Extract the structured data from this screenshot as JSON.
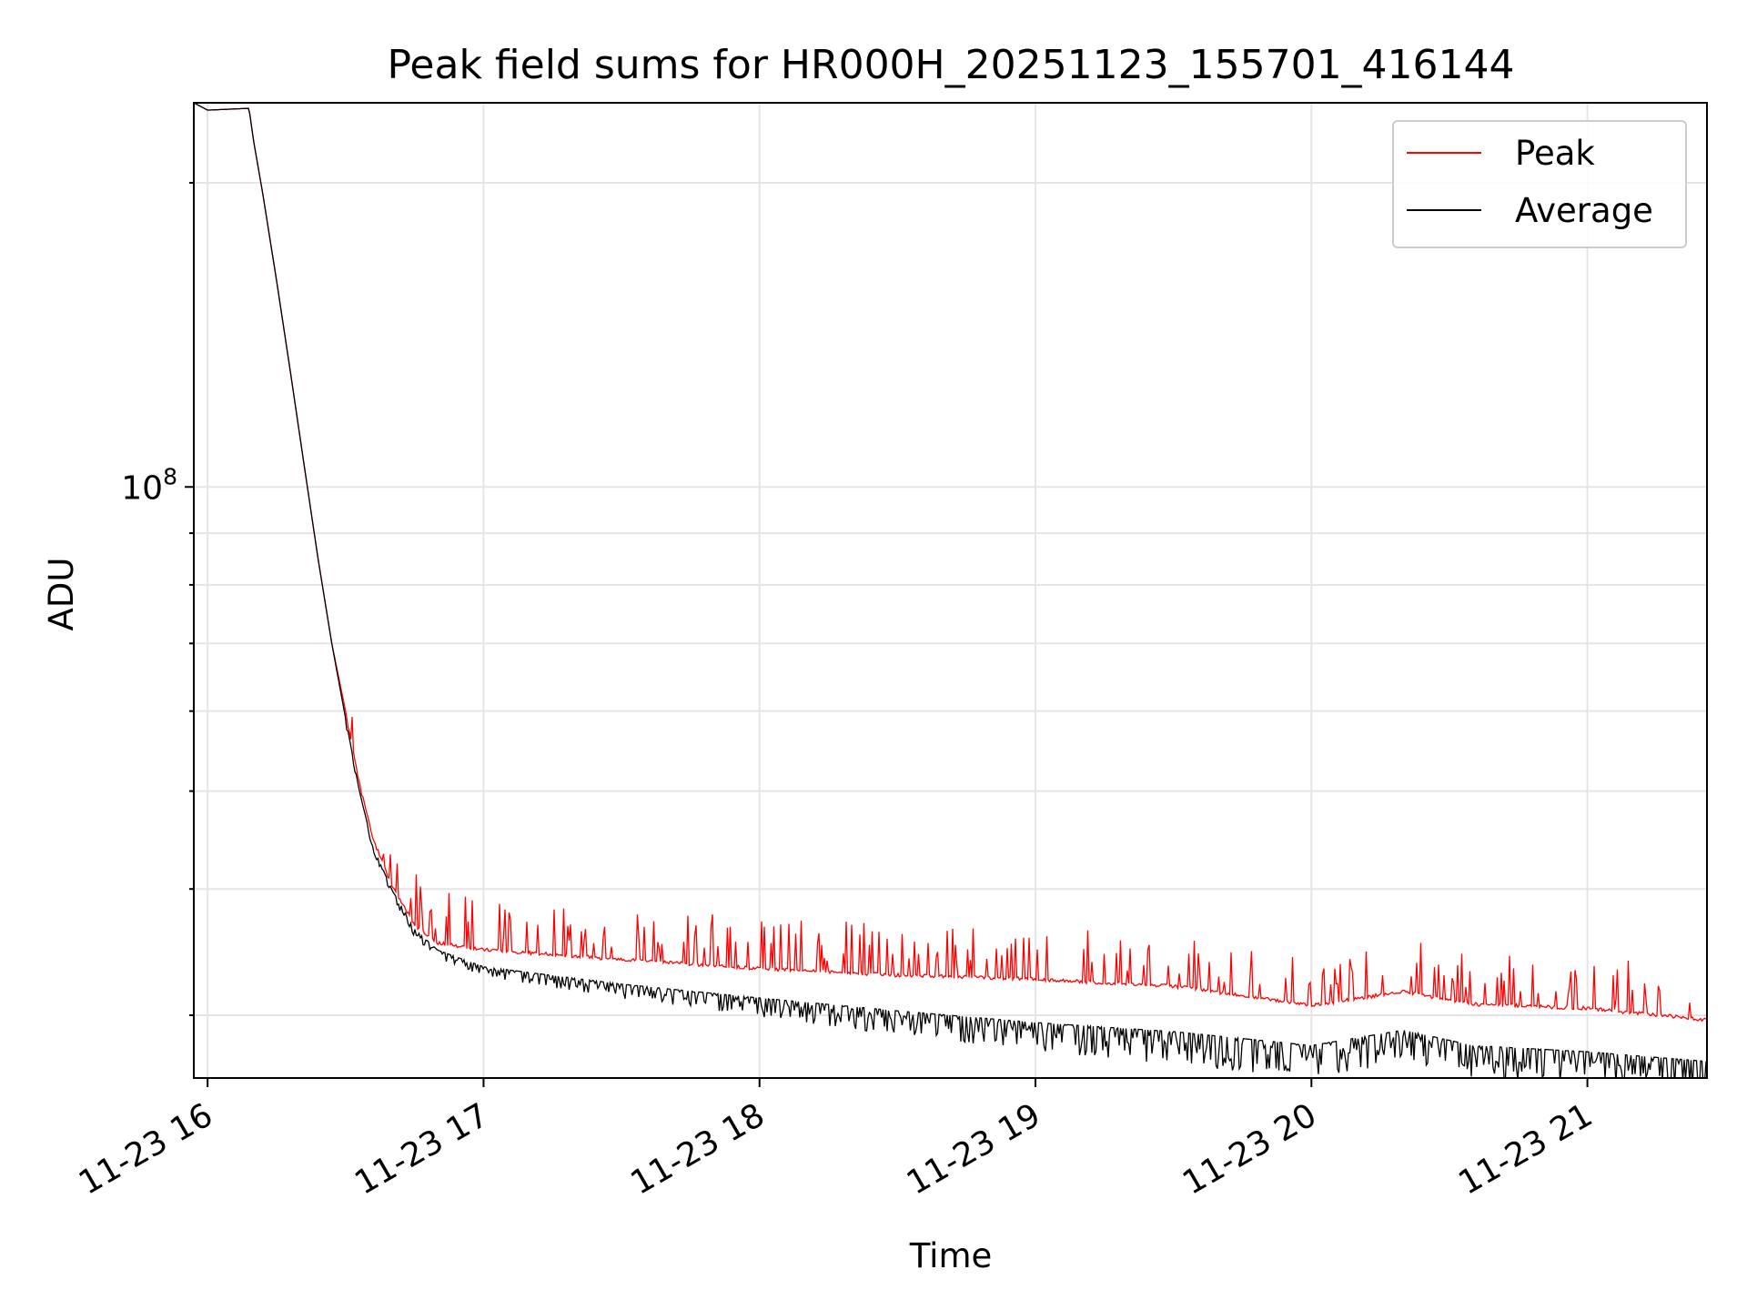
{
  "chart_data": {
    "type": "line",
    "title": "Peak field sums for HR000H_20251123_155701_416144",
    "xlabel": "Time",
    "ylabel": "ADU",
    "yscale": "log",
    "xlim": [
      "2025-11-23 15:57:00",
      "2025-11-23 21:26:00"
    ],
    "ylim": [
      26000000,
      240000000
    ],
    "x_ticks": [
      {
        "value": "2025-11-23 16:00",
        "label": "11-23 16"
      },
      {
        "value": "2025-11-23 17:00",
        "label": "11-23 17"
      },
      {
        "value": "2025-11-23 18:00",
        "label": "11-23 18"
      },
      {
        "value": "2025-11-23 19:00",
        "label": "11-23 19"
      },
      {
        "value": "2025-11-23 20:00",
        "label": "11-23 20"
      },
      {
        "value": "2025-11-23 21:00",
        "label": "11-23 21"
      }
    ],
    "y_major_ticks": [
      {
        "value": 100000000,
        "label_base": "10",
        "label_exp": "8"
      }
    ],
    "y_minor_ticks": [
      30000000,
      40000000,
      50000000,
      60000000,
      70000000,
      80000000,
      90000000,
      200000000
    ],
    "grid": true,
    "legend_position": "top-right",
    "series": [
      {
        "name": "Peak",
        "color": "#ff0000",
        "points": [
          [
            "2025-11-23 15:57",
            240000000
          ],
          [
            "2025-11-23 16:00",
            236000000
          ],
          [
            "2025-11-23 16:09",
            237000000
          ],
          [
            "2025-11-23 16:10",
            220000000
          ],
          [
            "2025-11-23 16:12",
            195000000
          ],
          [
            "2025-11-23 16:15",
            160000000
          ],
          [
            "2025-11-23 16:18",
            130000000
          ],
          [
            "2025-11-23 16:21",
            105000000
          ],
          [
            "2025-11-23 16:24",
            85000000
          ],
          [
            "2025-11-23 16:27",
            70000000
          ],
          [
            "2025-11-23 16:30",
            60000000
          ],
          [
            "2025-11-23 16:33",
            51000000
          ],
          [
            "2025-11-23 16:36",
            45000000
          ],
          [
            "2025-11-23 16:40",
            40500000
          ],
          [
            "2025-11-23 16:45",
            37000000
          ],
          [
            "2025-11-23 16:50",
            35500000
          ],
          [
            "2025-11-23 17:00",
            35000000
          ],
          [
            "2025-11-23 17:30",
            34200000
          ],
          [
            "2025-11-23 18:00",
            33500000
          ],
          [
            "2025-11-23 18:30",
            33000000
          ],
          [
            "2025-11-23 19:00",
            32700000
          ],
          [
            "2025-11-23 19:30",
            32200000
          ],
          [
            "2025-11-23 20:00",
            30800000
          ],
          [
            "2025-11-23 20:20",
            31800000
          ],
          [
            "2025-11-23 20:35",
            30900000
          ],
          [
            "2025-11-23 21:00",
            30600000
          ],
          [
            "2025-11-23 21:26",
            29800000
          ]
        ]
      },
      {
        "name": "Average",
        "color": "#000000",
        "points": [
          [
            "2025-11-23 15:57",
            240000000
          ],
          [
            "2025-11-23 16:00",
            236000000
          ],
          [
            "2025-11-23 16:09",
            237000000
          ],
          [
            "2025-11-23 16:10",
            220000000
          ],
          [
            "2025-11-23 16:12",
            195000000
          ],
          [
            "2025-11-23 16:15",
            160000000
          ],
          [
            "2025-11-23 16:18",
            130000000
          ],
          [
            "2025-11-23 16:21",
            105000000
          ],
          [
            "2025-11-23 16:24",
            85000000
          ],
          [
            "2025-11-23 16:27",
            70000000
          ],
          [
            "2025-11-23 16:30",
            59000000
          ],
          [
            "2025-11-23 16:33",
            50000000
          ],
          [
            "2025-11-23 16:36",
            44000000
          ],
          [
            "2025-11-23 16:40",
            40000000
          ],
          [
            "2025-11-23 16:45",
            36500000
          ],
          [
            "2025-11-23 16:50",
            34800000
          ],
          [
            "2025-11-23 17:00",
            33500000
          ],
          [
            "2025-11-23 17:30",
            32200000
          ],
          [
            "2025-11-23 18:00",
            31200000
          ],
          [
            "2025-11-23 18:30",
            30300000
          ],
          [
            "2025-11-23 19:00",
            29500000
          ],
          [
            "2025-11-23 19:30",
            28900000
          ],
          [
            "2025-11-23 20:00",
            28000000
          ],
          [
            "2025-11-23 20:20",
            29000000
          ],
          [
            "2025-11-23 20:35",
            28000000
          ],
          [
            "2025-11-23 21:00",
            27600000
          ],
          [
            "2025-11-23 21:26",
            27000000
          ]
        ]
      }
    ]
  }
}
